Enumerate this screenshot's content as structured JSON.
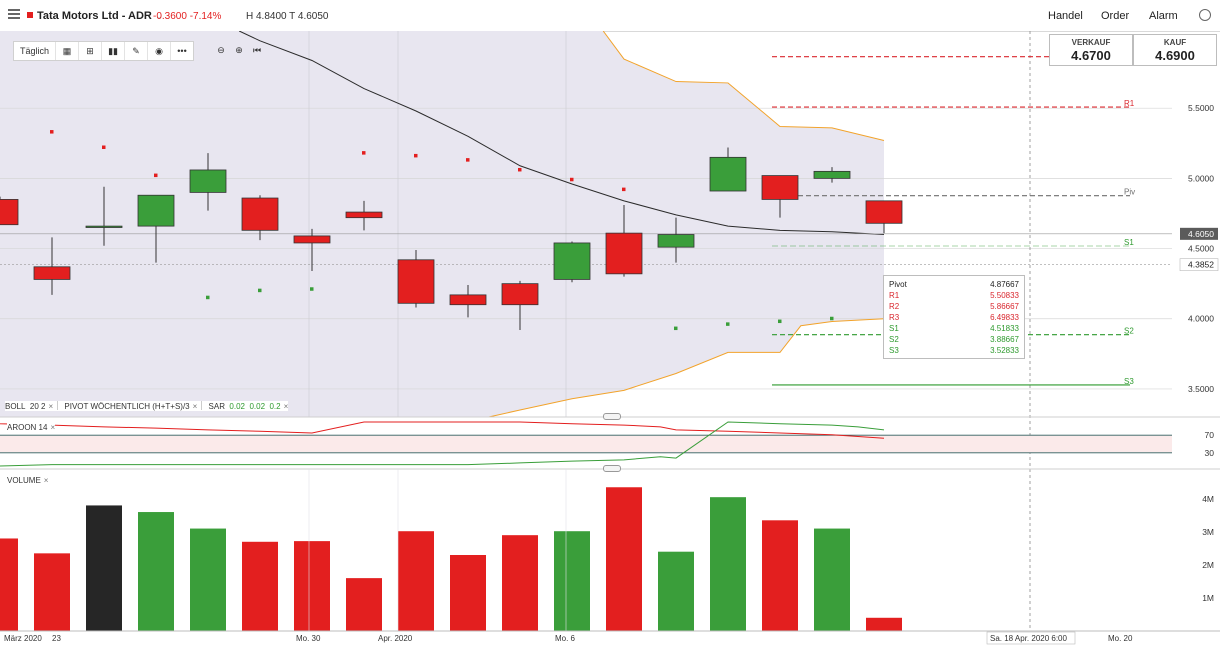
{
  "header": {
    "title": "Tata Motors Ltd - ADR",
    "change": "-0.3600 -7.14%",
    "hl": "H 4.8400 T 4.6050",
    "nav": [
      "Handel",
      "Order",
      "Alarm"
    ]
  },
  "toolbar": {
    "interval": "Täglich"
  },
  "quote": {
    "sell_label": "VERKAUF",
    "sell_value": "4.6700",
    "buy_label": "KAUF",
    "buy_value": "4.6900"
  },
  "legends": {
    "boll": "BOLL",
    "boll_params": "20  2",
    "pivot": "PIVOT  WÖCHENTLICH (H+T+S)/3",
    "sar": "SAR",
    "sar_p1": "0.02",
    "sar_p2": "0.02",
    "sar_p3": "0.2",
    "aroon": "AROON  14",
    "volume": "VOLUME",
    "close": "×"
  },
  "pivot_box": {
    "rows": [
      {
        "label": "Pivot",
        "value": "4.87667"
      },
      {
        "label": "R1",
        "value": "5.50833"
      },
      {
        "label": "R2",
        "value": "5.86667"
      },
      {
        "label": "R3",
        "value": "6.49833"
      },
      {
        "label": "S1",
        "value": "4.51833"
      },
      {
        "label": "S2",
        "value": "3.88667"
      },
      {
        "label": "S3",
        "value": "3.52833"
      }
    ]
  },
  "colors": {
    "up": "#3a9e3a",
    "down": "#e31f1f",
    "neutral": "#262626",
    "boll_line": "#f2a32b",
    "band_fill": "#e8e6f0",
    "pivot": "#6f6f6f",
    "resistance": "#d9272e",
    "support": "#2e9a2e",
    "sma": "#2b2b2b"
  },
  "chart_data": [
    {
      "type": "candlestick",
      "ylim": [
        3.3,
        6.05
      ],
      "y_ticks": [
        "5.5000",
        "5.0000",
        "4.5000",
        "4.0000",
        "3.5000"
      ],
      "y_tick_values": [
        5.5,
        5.0,
        4.5,
        4.0,
        3.5
      ],
      "last_price": "4.6050",
      "last_price_value": 4.605,
      "crosshair_label": "4.3852",
      "crosshair_value": 4.3852,
      "x_labels": [
        "März 2020",
        "23",
        "Mo. 30",
        "Apr. 2020",
        "Mo. 6",
        "Sa. 18 Apr. 2020 6:00",
        "Mo. 20"
      ],
      "candles": [
        {
          "o": 4.85,
          "h": 4.87,
          "l": 4.67,
          "c": 4.67
        },
        {
          "o": 4.37,
          "h": 4.58,
          "l": 4.17,
          "c": 4.28
        },
        {
          "o": 4.65,
          "h": 4.94,
          "l": 4.52,
          "c": 4.66
        },
        {
          "o": 4.66,
          "h": 4.88,
          "l": 4.4,
          "c": 4.88
        },
        {
          "o": 4.9,
          "h": 5.18,
          "l": 4.77,
          "c": 5.06
        },
        {
          "o": 4.86,
          "h": 4.88,
          "l": 4.56,
          "c": 4.63
        },
        {
          "o": 4.59,
          "h": 4.64,
          "l": 4.34,
          "c": 4.54
        },
        {
          "o": 4.76,
          "h": 4.84,
          "l": 4.63,
          "c": 4.72
        },
        {
          "o": 4.42,
          "h": 4.49,
          "l": 4.08,
          "c": 4.11
        },
        {
          "o": 4.17,
          "h": 4.24,
          "l": 4.01,
          "c": 4.1
        },
        {
          "o": 4.25,
          "h": 4.27,
          "l": 3.92,
          "c": 4.1
        },
        {
          "o": 4.28,
          "h": 4.55,
          "l": 4.26,
          "c": 4.54
        },
        {
          "o": 4.61,
          "h": 4.81,
          "l": 4.3,
          "c": 4.32
        },
        {
          "o": 4.51,
          "h": 4.72,
          "l": 4.4,
          "c": 4.6
        },
        {
          "o": 4.91,
          "h": 5.22,
          "l": 4.91,
          "c": 5.15
        },
        {
          "o": 5.02,
          "h": 5.02,
          "l": 4.72,
          "c": 4.85
        },
        {
          "o": 5.0,
          "h": 5.08,
          "l": 4.97,
          "c": 5.05
        },
        {
          "o": 4.84,
          "h": 4.84,
          "l": 4.61,
          "c": 4.68
        }
      ],
      "sar": [
        5.33,
        5.22,
        5.02,
        4.15,
        4.2,
        4.21,
        5.18,
        5.16,
        5.13,
        5.06,
        4.99,
        4.92,
        3.93,
        3.96,
        3.98,
        4.0
      ],
      "sar_from_index": 1,
      "sma": [
        6.05,
        5.98,
        5.84,
        5.64,
        5.48,
        5.3,
        5.09,
        4.96,
        4.84,
        4.74,
        4.66,
        4.63,
        4.62,
        4.6
      ],
      "sma_x_index": [
        4.6,
        5.0,
        6.0,
        7.0,
        8.0,
        9.0,
        10.0,
        11.0,
        12.0,
        13.0,
        14.0,
        15.0,
        16.0,
        17.0
      ],
      "boll_upper": [
        6.05,
        5.85,
        5.69,
        5.68,
        5.37,
        5.36,
        5.27
      ],
      "boll_upper_x": [
        11.6,
        12.0,
        13.0,
        14.0,
        15.0,
        16.0,
        17.0
      ],
      "boll_lower": [
        3.3,
        3.35,
        3.43,
        3.49,
        3.61,
        3.76,
        3.76,
        3.95,
        3.98,
        4.0
      ],
      "boll_lower_x": [
        9.4,
        10.0,
        11.0,
        12.0,
        13.0,
        14.0,
        15.0,
        15.4,
        16.0,
        17.0
      ],
      "pivot_levels": [
        {
          "name": "R2",
          "value": 5.86667,
          "style": "resistance"
        },
        {
          "name": "R1",
          "value": 5.50833,
          "style": "resistance"
        },
        {
          "name": "Piv",
          "value": 4.87667,
          "style": "pivot"
        },
        {
          "name": "S1",
          "value": 4.51833,
          "style": "support"
        },
        {
          "name": "S2",
          "value": 3.88667,
          "style": "support"
        },
        {
          "name": "S3",
          "value": 3.52833,
          "style": "support"
        }
      ]
    },
    {
      "type": "line",
      "name": "AROON 14",
      "ylim": [
        0,
        100
      ],
      "levels": [
        70,
        30
      ],
      "level_labels": [
        "70",
        "30"
      ],
      "up": [
        100,
        96,
        93,
        89,
        86,
        82,
        79,
        75,
        100,
        100,
        100,
        100,
        96,
        93,
        89,
        82,
        79,
        75,
        71,
        67,
        63
      ],
      "down": [
        0,
        0,
        3,
        3,
        3,
        3,
        3,
        3,
        3,
        3,
        3,
        7,
        11,
        14,
        21,
        18,
        100,
        96,
        93,
        89,
        82
      ],
      "x_index": [
        -0.7,
        0,
        1,
        2,
        3,
        4,
        5,
        6,
        7,
        8,
        9,
        10,
        11,
        12,
        12.7,
        13,
        14,
        15,
        16,
        16.5,
        17
      ]
    },
    {
      "type": "bar",
      "name": "VOLUME",
      "ylim": [
        0,
        4.6
      ],
      "y_ticks": [
        "4M",
        "3M",
        "2M",
        "1M"
      ],
      "y_tick_values": [
        4,
        3,
        2,
        1
      ],
      "values": [
        2.8,
        2.35,
        3.8,
        3.6,
        3.1,
        2.7,
        2.72,
        1.6,
        3.02,
        2.3,
        2.9,
        3.02,
        4.35,
        2.4,
        4.05,
        3.35,
        3.1,
        0.4
      ],
      "colors": [
        "down",
        "down",
        "neutral",
        "up",
        "up",
        "down",
        "down",
        "down",
        "down",
        "down",
        "down",
        "up",
        "down",
        "up",
        "up",
        "down",
        "up",
        "down"
      ]
    }
  ]
}
